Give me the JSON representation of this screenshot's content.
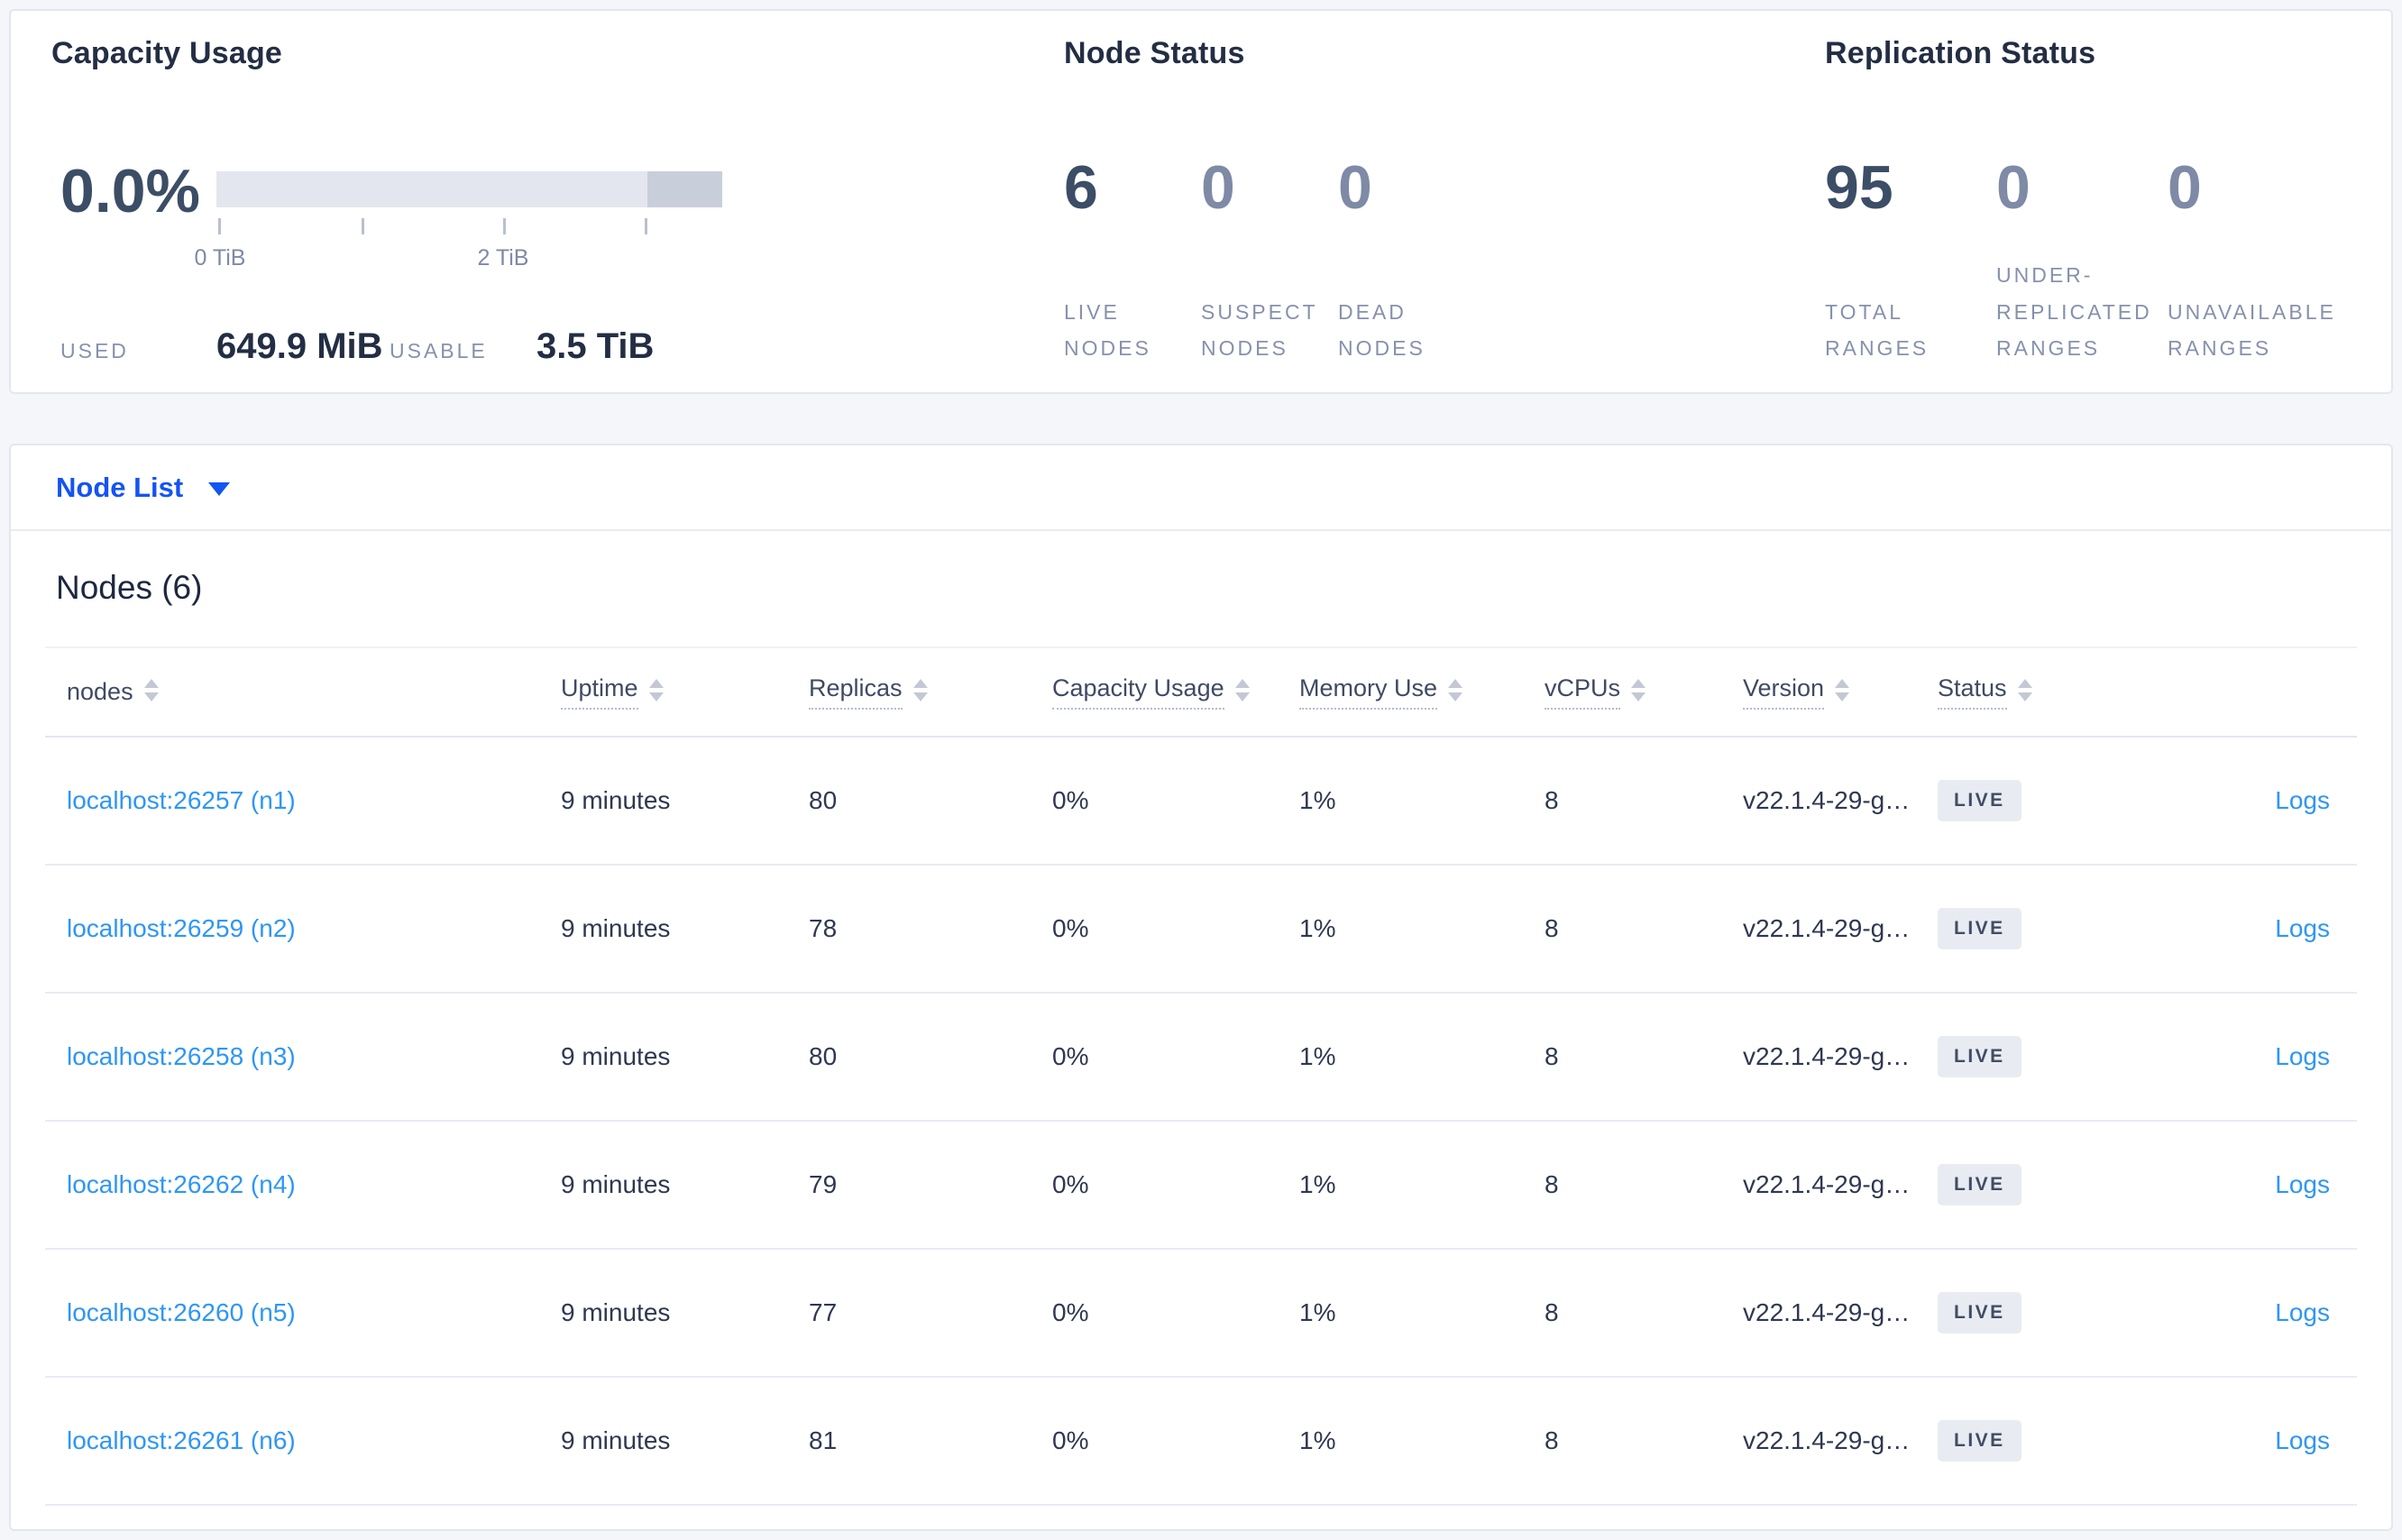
{
  "colors": {
    "page_bg": "#f4f6fa",
    "card_bg": "#ffffff",
    "card_border": "#e3e7ee",
    "heading": "#232e44",
    "stat_dark": "#3c4d66",
    "stat_muted": "#7e8aa6",
    "label_muted": "#8691ab",
    "bar_track": "#e3e6ee",
    "bar_end": "#c9cedb",
    "tick": "#b9c0cf",
    "primary_blue": "#1454f2",
    "link_blue": "#2e96f7",
    "divider": "#e8ebf2",
    "title_divider": "#eef1f6",
    "header_text": "#3f4a63",
    "header_border": "#e3e7ef",
    "dotted": "#b4bcd0",
    "sort_arrow": "#c3c8d4",
    "cell_text": "#2e3850",
    "badge_bg": "#e8ecf2",
    "badge_text": "#414d63"
  },
  "overview": {
    "capacity": {
      "title": "Capacity Usage",
      "percent": "0.0%",
      "tick_labels": [
        "0 TiB",
        "2 TiB"
      ],
      "used_label": "USED",
      "used_value": "649.9 MiB",
      "usable_label": "USABLE",
      "usable_value": "3.5 TiB"
    },
    "node_status": {
      "title": "Node Status",
      "metrics": [
        {
          "value": "6",
          "label": [
            "LIVE",
            "NODES"
          ],
          "muted": false
        },
        {
          "value": "0",
          "label": [
            "SUSPECT",
            "NODES"
          ],
          "muted": true
        },
        {
          "value": "0",
          "label": [
            "DEAD",
            "NODES"
          ],
          "muted": true
        }
      ]
    },
    "replication": {
      "title": "Replication Status",
      "metrics": [
        {
          "value": "95",
          "label": [
            "TOTAL",
            "RANGES"
          ],
          "muted": false
        },
        {
          "value": "0",
          "label": [
            "UNDER-",
            "REPLICATED",
            "RANGES"
          ],
          "muted": true
        },
        {
          "value": "0",
          "label": [
            "UNAVAILABLE",
            "RANGES"
          ],
          "muted": true
        }
      ]
    }
  },
  "node_list": {
    "dropdown_label": "Node List",
    "table_title": "Nodes (6)",
    "columns": [
      {
        "key": "node",
        "label": "nodes",
        "tooltip": false
      },
      {
        "key": "uptime",
        "label": "Uptime",
        "tooltip": true
      },
      {
        "key": "replicas",
        "label": "Replicas",
        "tooltip": true
      },
      {
        "key": "capacity",
        "label": "Capacity Usage",
        "tooltip": true
      },
      {
        "key": "memory",
        "label": "Memory Use",
        "tooltip": true
      },
      {
        "key": "vcpus",
        "label": "vCPUs",
        "tooltip": true
      },
      {
        "key": "version",
        "label": "Version",
        "tooltip": true
      },
      {
        "key": "status",
        "label": "Status",
        "tooltip": true
      },
      {
        "key": "logs",
        "label": "",
        "tooltip": false
      }
    ],
    "rows": [
      {
        "node": "localhost:26257 (n1)",
        "uptime": "9 minutes",
        "replicas": "80",
        "capacity": "0%",
        "memory": "1%",
        "vcpus": "8",
        "version": "v22.1.4-29-g…",
        "status": "LIVE",
        "logs": "Logs"
      },
      {
        "node": "localhost:26259 (n2)",
        "uptime": "9 minutes",
        "replicas": "78",
        "capacity": "0%",
        "memory": "1%",
        "vcpus": "8",
        "version": "v22.1.4-29-g…",
        "status": "LIVE",
        "logs": "Logs"
      },
      {
        "node": "localhost:26258 (n3)",
        "uptime": "9 minutes",
        "replicas": "80",
        "capacity": "0%",
        "memory": "1%",
        "vcpus": "8",
        "version": "v22.1.4-29-g…",
        "status": "LIVE",
        "logs": "Logs"
      },
      {
        "node": "localhost:26262 (n4)",
        "uptime": "9 minutes",
        "replicas": "79",
        "capacity": "0%",
        "memory": "1%",
        "vcpus": "8",
        "version": "v22.1.4-29-g…",
        "status": "LIVE",
        "logs": "Logs"
      },
      {
        "node": "localhost:26260 (n5)",
        "uptime": "9 minutes",
        "replicas": "77",
        "capacity": "0%",
        "memory": "1%",
        "vcpus": "8",
        "version": "v22.1.4-29-g…",
        "status": "LIVE",
        "logs": "Logs"
      },
      {
        "node": "localhost:26261 (n6)",
        "uptime": "9 minutes",
        "replicas": "81",
        "capacity": "0%",
        "memory": "1%",
        "vcpus": "8",
        "version": "v22.1.4-29-g…",
        "status": "LIVE",
        "logs": "Logs"
      }
    ]
  }
}
